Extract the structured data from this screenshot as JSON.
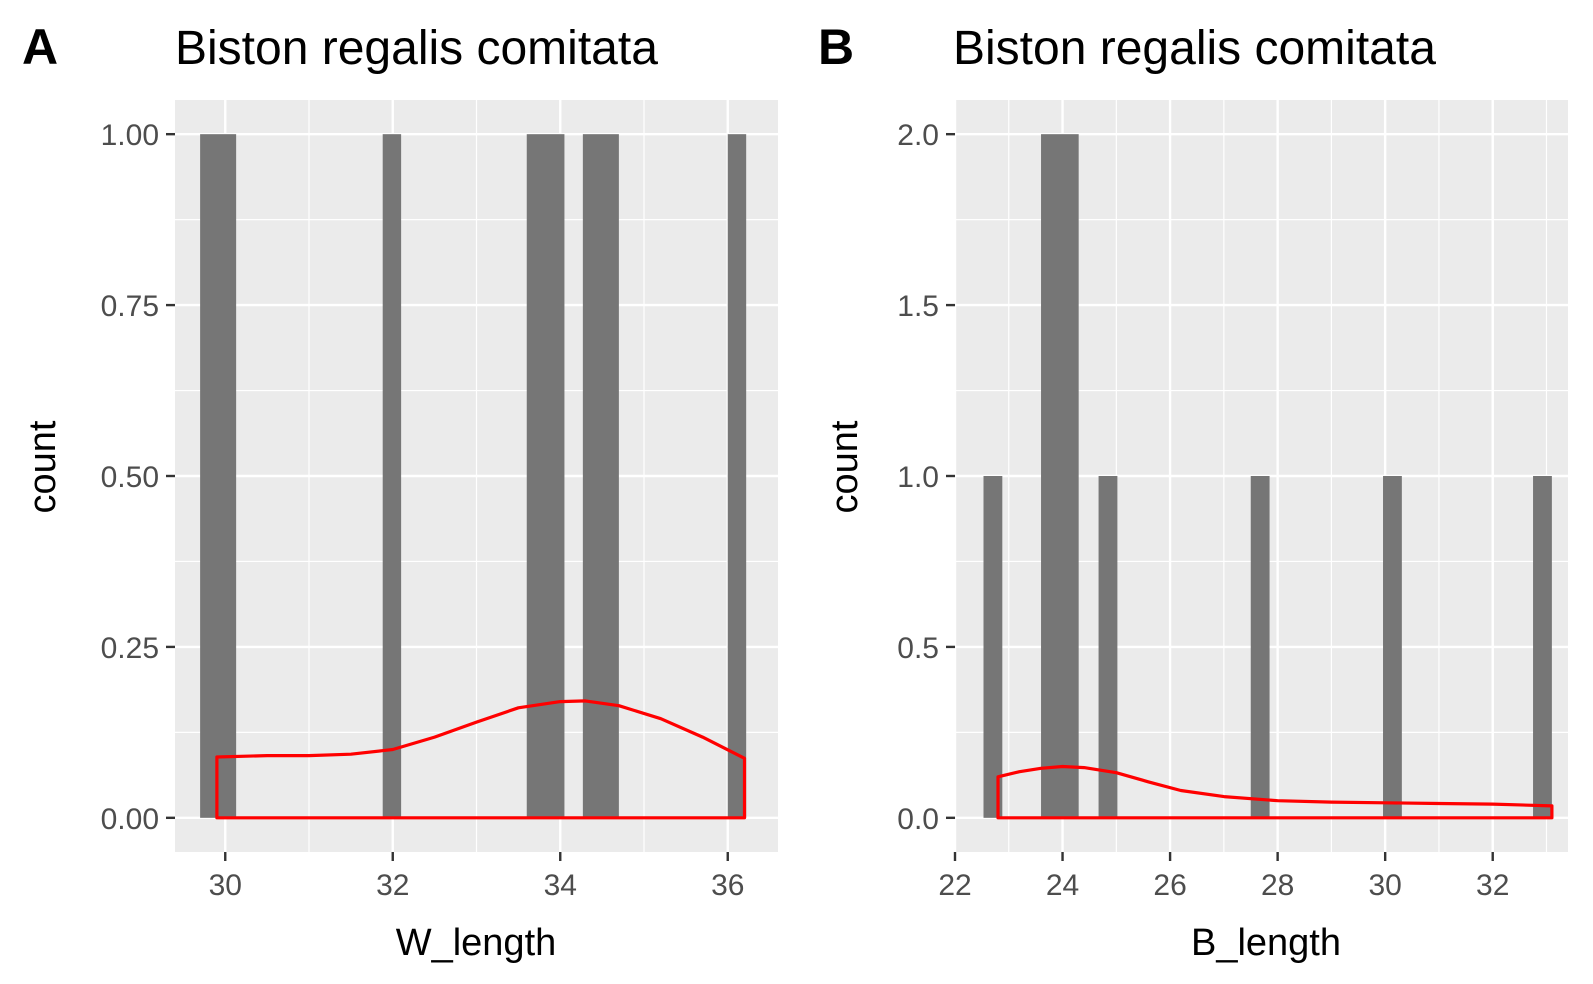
{
  "chart_data": [
    {
      "type": "bar",
      "panel_tag": "A",
      "title": "Biston regalis comitata",
      "xlabel": "W_length",
      "ylabel": "count",
      "xlim": [
        29.4,
        36.6
      ],
      "ylim": [
        -0.05,
        1.05
      ],
      "xticks": [
        {
          "value": 30,
          "label": "30"
        },
        {
          "value": 32,
          "label": "32"
        },
        {
          "value": 34,
          "label": "34"
        },
        {
          "value": 36,
          "label": "36"
        }
      ],
      "yticks": [
        {
          "value": 0,
          "label": "0.00"
        },
        {
          "value": 0.25,
          "label": "0.25"
        },
        {
          "value": 0.5,
          "label": "0.50"
        },
        {
          "value": 0.75,
          "label": "0.75"
        },
        {
          "value": 1.0,
          "label": "1.00"
        }
      ],
      "bars": [
        {
          "x0": 29.7,
          "x1": 30.13,
          "count": 1
        },
        {
          "x0": 31.88,
          "x1": 32.1,
          "count": 1
        },
        {
          "x0": 33.6,
          "x1": 34.05,
          "count": 1
        },
        {
          "x0": 34.27,
          "x1": 34.7,
          "count": 1
        },
        {
          "x0": 36.0,
          "x1": 36.22,
          "count": 1
        }
      ],
      "density": [
        [
          29.9,
          0.089
        ],
        [
          30.5,
          0.091
        ],
        [
          31.0,
          0.091
        ],
        [
          31.5,
          0.093
        ],
        [
          32.0,
          0.1
        ],
        [
          32.5,
          0.118
        ],
        [
          33.0,
          0.14
        ],
        [
          33.5,
          0.161
        ],
        [
          34.0,
          0.17
        ],
        [
          34.3,
          0.171
        ],
        [
          34.7,
          0.164
        ],
        [
          35.2,
          0.145
        ],
        [
          35.7,
          0.118
        ],
        [
          36.2,
          0.087
        ]
      ],
      "bar_color": "#767676",
      "density_color": "#ff0000"
    },
    {
      "type": "bar",
      "panel_tag": "B",
      "title": "Biston regalis comitata",
      "xlabel": "B_length",
      "ylabel": "count",
      "xlim": [
        22.0,
        33.4
      ],
      "ylim": [
        -0.1,
        2.1
      ],
      "xticks": [
        {
          "value": 22,
          "label": "22"
        },
        {
          "value": 24,
          "label": "24"
        },
        {
          "value": 26,
          "label": "26"
        },
        {
          "value": 28,
          "label": "28"
        },
        {
          "value": 30,
          "label": "30"
        },
        {
          "value": 32,
          "label": "32"
        }
      ],
      "yticks": [
        {
          "value": 0,
          "label": "0.0"
        },
        {
          "value": 0.5,
          "label": "0.5"
        },
        {
          "value": 1.0,
          "label": "1.0"
        },
        {
          "value": 1.5,
          "label": "1.5"
        },
        {
          "value": 2.0,
          "label": "2.0"
        }
      ],
      "bars": [
        {
          "x0": 22.53,
          "x1": 22.88,
          "count": 1
        },
        {
          "x0": 23.6,
          "x1": 24.3,
          "count": 2
        },
        {
          "x0": 24.67,
          "x1": 25.02,
          "count": 1
        },
        {
          "x0": 27.5,
          "x1": 27.85,
          "count": 1
        },
        {
          "x0": 29.96,
          "x1": 30.31,
          "count": 1
        },
        {
          "x0": 32.75,
          "x1": 33.1,
          "count": 1
        }
      ],
      "density": [
        [
          22.8,
          0.12
        ],
        [
          23.2,
          0.135
        ],
        [
          23.6,
          0.145
        ],
        [
          24.0,
          0.15
        ],
        [
          24.4,
          0.147
        ],
        [
          25.0,
          0.132
        ],
        [
          25.6,
          0.105
        ],
        [
          26.2,
          0.08
        ],
        [
          27.0,
          0.062
        ],
        [
          28.0,
          0.05
        ],
        [
          29.0,
          0.046
        ],
        [
          30.0,
          0.044
        ],
        [
          31.0,
          0.042
        ],
        [
          32.0,
          0.04
        ],
        [
          33.1,
          0.035
        ]
      ],
      "bar_color": "#767676",
      "density_color": "#ff0000"
    }
  ]
}
